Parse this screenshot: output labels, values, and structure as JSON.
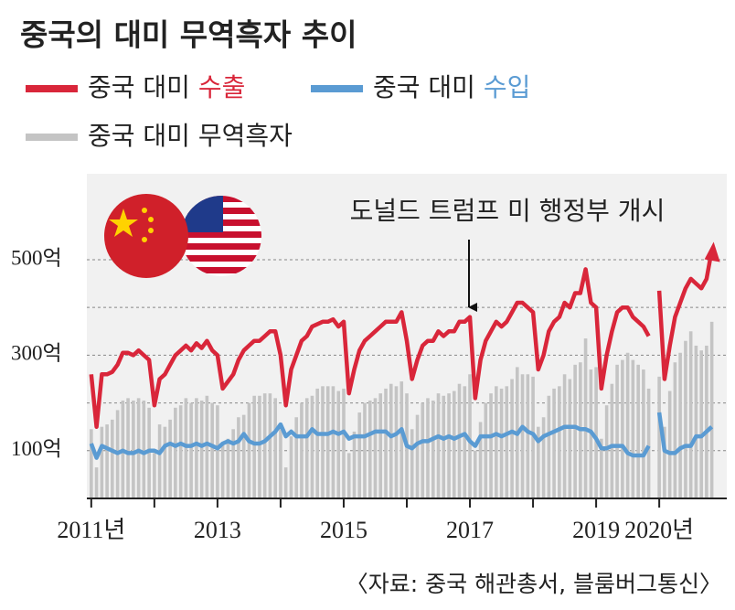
{
  "chart_data": {
    "type": "line",
    "title": "중국의 대미 무역흑자 추이",
    "annotation": "도널드 트럼프 미 행정부 개시",
    "source": "〈자료: 중국 해관총서, 블룸버그통신〉",
    "xlim": [
      2010.93,
      2021.07
    ],
    "ylim": [
      0,
      680
    ],
    "xticks": [
      {
        "value": 2011,
        "label": "2011년"
      },
      {
        "value": 2012,
        "label": null
      },
      {
        "value": 2013,
        "label": "2013"
      },
      {
        "value": 2014,
        "label": null
      },
      {
        "value": 2015,
        "label": "2015"
      },
      {
        "value": 2016,
        "label": null
      },
      {
        "value": 2017,
        "label": "2017"
      },
      {
        "value": 2018,
        "label": null
      },
      {
        "value": 2019,
        "label": "2019"
      },
      {
        "value": 2020,
        "label": "2020년"
      }
    ],
    "yticks": [
      {
        "value": 100,
        "label": "100억"
      },
      {
        "value": 200,
        "label": null
      },
      {
        "value": 300,
        "label": "300억"
      },
      {
        "value": 400,
        "label": null
      },
      {
        "value": 500,
        "label": "500억"
      }
    ],
    "grid": true,
    "x": [
      2011,
      2011.083,
      2011.167,
      2011.25,
      2011.333,
      2011.417,
      2011.5,
      2011.583,
      2011.667,
      2011.75,
      2011.833,
      2011.917,
      2012,
      2012.083,
      2012.167,
      2012.25,
      2012.333,
      2012.417,
      2012.5,
      2012.583,
      2012.667,
      2012.75,
      2012.833,
      2012.917,
      2013,
      2013.083,
      2013.167,
      2013.25,
      2013.333,
      2013.417,
      2013.5,
      2013.583,
      2013.667,
      2013.75,
      2013.833,
      2013.917,
      2014,
      2014.083,
      2014.167,
      2014.25,
      2014.333,
      2014.417,
      2014.5,
      2014.583,
      2014.667,
      2014.75,
      2014.833,
      2014.917,
      2015,
      2015.083,
      2015.167,
      2015.25,
      2015.333,
      2015.417,
      2015.5,
      2015.583,
      2015.667,
      2015.75,
      2015.833,
      2015.917,
      2016,
      2016.083,
      2016.167,
      2016.25,
      2016.333,
      2016.417,
      2016.5,
      2016.583,
      2016.667,
      2016.75,
      2016.833,
      2016.917,
      2017,
      2017.083,
      2017.167,
      2017.25,
      2017.333,
      2017.417,
      2017.5,
      2017.583,
      2017.667,
      2017.75,
      2017.833,
      2017.917,
      2018,
      2018.083,
      2018.167,
      2018.25,
      2018.333,
      2018.417,
      2018.5,
      2018.583,
      2018.667,
      2018.75,
      2018.833,
      2018.917,
      2019,
      2019.083,
      2019.167,
      2019.25,
      2019.333,
      2019.417,
      2019.5,
      2019.583,
      2019.667,
      2019.75,
      2019.833,
      2019.917,
      2020,
      2020.083,
      2020.167,
      2020.25,
      2020.333,
      2020.417,
      2020.5,
      2020.583,
      2020.667,
      2020.75,
      2020.833
    ],
    "series": [
      {
        "name": "중국 대미 무역흑자",
        "type": "bar",
        "color": "#c4c4c4",
        "values": [
          145,
          65,
          150,
          155,
          165,
          185,
          205,
          210,
          205,
          210,
          205,
          190,
          95,
          155,
          150,
          165,
          190,
          195,
          210,
          200,
          210,
          205,
          215,
          200,
          195,
          115,
          125,
          145,
          170,
          175,
          200,
          215,
          215,
          220,
          220,
          210,
          145,
          65,
          130,
          170,
          200,
          210,
          215,
          230,
          235,
          235,
          235,
          225,
          230,
          95,
          140,
          180,
          200,
          205,
          210,
          220,
          230,
          240,
          235,
          245,
          220,
          145,
          175,
          200,
          210,
          205,
          220,
          215,
          220,
          225,
          240,
          235,
          260,
          100,
          160,
          200,
          220,
          235,
          230,
          235,
          250,
          275,
          260,
          260,
          255,
          150,
          170,
          215,
          230,
          235,
          260,
          250,
          280,
          285,
          335,
          270,
          275,
          125,
          195,
          240,
          280,
          290,
          305,
          290,
          280,
          270,
          230,
          null,
          255,
          150,
          225,
          285,
          305,
          330,
          350,
          320,
          310,
          320,
          370
        ]
      },
      {
        "name": "중국 대미 수출",
        "type": "line",
        "color": "#d9263a",
        "values": [
          260,
          150,
          260,
          260,
          265,
          280,
          305,
          305,
          300,
          310,
          300,
          290,
          195,
          250,
          260,
          280,
          300,
          310,
          320,
          310,
          325,
          315,
          330,
          310,
          300,
          230,
          245,
          260,
          290,
          310,
          320,
          330,
          330,
          340,
          350,
          350,
          300,
          195,
          270,
          300,
          330,
          340,
          360,
          365,
          370,
          370,
          375,
          360,
          370,
          220,
          270,
          310,
          330,
          340,
          350,
          360,
          370,
          370,
          370,
          390,
          330,
          250,
          290,
          320,
          330,
          330,
          350,
          340,
          350,
          350,
          370,
          370,
          380,
          210,
          290,
          330,
          350,
          370,
          360,
          370,
          390,
          410,
          410,
          400,
          390,
          270,
          300,
          350,
          370,
          380,
          410,
          400,
          430,
          430,
          480,
          410,
          400,
          230,
          300,
          350,
          390,
          400,
          400,
          380,
          370,
          360,
          340,
          null,
          435,
          250,
          320,
          380,
          410,
          440,
          460,
          450,
          440,
          460,
          520
        ]
      },
      {
        "name": "중국 대미 수입",
        "type": "line",
        "color": "#5a9bd3",
        "values": [
          115,
          85,
          110,
          105,
          100,
          95,
          100,
          95,
          95,
          100,
          95,
          100,
          100,
          95,
          110,
          115,
          110,
          115,
          110,
          110,
          115,
          110,
          115,
          110,
          105,
          115,
          120,
          115,
          120,
          135,
          120,
          115,
          115,
          120,
          130,
          140,
          155,
          130,
          140,
          130,
          130,
          130,
          145,
          135,
          135,
          135,
          140,
          135,
          140,
          125,
          130,
          130,
          130,
          135,
          140,
          140,
          140,
          130,
          135,
          145,
          110,
          105,
          115,
          120,
          120,
          125,
          130,
          125,
          130,
          125,
          130,
          135,
          120,
          110,
          130,
          130,
          130,
          135,
          130,
          135,
          140,
          135,
          150,
          140,
          135,
          120,
          130,
          135,
          140,
          145,
          150,
          150,
          150,
          145,
          145,
          140,
          125,
          105,
          105,
          110,
          110,
          110,
          95,
          90,
          90,
          90,
          110,
          null,
          180,
          100,
          95,
          95,
          105,
          110,
          110,
          130,
          130,
          140,
          150
        ]
      }
    ]
  }
}
